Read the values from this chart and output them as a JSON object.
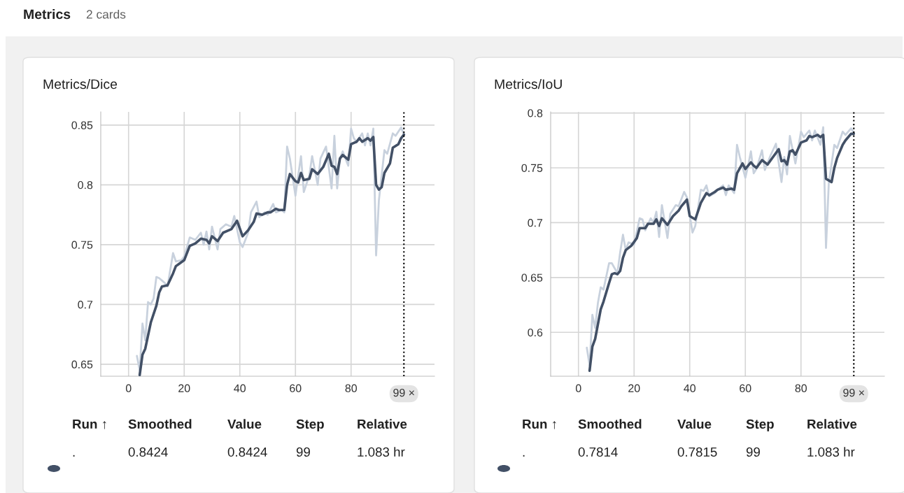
{
  "chart_data": [
    {
      "type": "line",
      "title": "Metrics/Dice",
      "xlim": [
        -10,
        110
      ],
      "xticks": [
        0,
        20,
        40,
        60,
        80
      ],
      "ylim": [
        0.64,
        0.861
      ],
      "yticks": [
        0.65,
        0.7,
        0.75,
        0.8,
        0.85
      ],
      "grid": true,
      "line_style": "solid",
      "marker": "none",
      "series": [
        {
          "color": "#c8d1dd",
          "x": [
            3,
            4,
            5,
            6,
            7,
            8,
            9,
            10,
            11,
            12,
            13,
            14,
            16,
            17,
            19,
            20,
            22,
            24,
            26,
            27,
            28,
            29,
            30,
            32,
            33,
            35,
            37,
            38,
            40,
            41,
            43,
            44,
            46,
            47,
            49,
            50,
            52,
            53,
            55,
            56,
            57,
            58,
            60,
            61,
            62,
            63,
            65,
            66,
            68,
            69,
            71,
            73,
            74,
            75,
            76,
            77,
            79,
            80,
            81,
            82,
            84,
            85,
            86,
            87,
            88,
            89,
            90,
            92,
            93,
            95,
            96,
            98,
            99
          ],
          "values": [
            0.657,
            0.645,
            0.684,
            0.67,
            0.702,
            0.7,
            0.705,
            0.723,
            0.722,
            0.72,
            0.718,
            0.715,
            0.743,
            0.736,
            0.737,
            0.74,
            0.756,
            0.754,
            0.76,
            0.75,
            0.761,
            0.746,
            0.765,
            0.746,
            0.763,
            0.767,
            0.765,
            0.774,
            0.752,
            0.748,
            0.76,
            0.777,
            0.786,
            0.773,
            0.777,
            0.775,
            0.784,
            0.777,
            0.779,
            0.777,
            0.832,
            0.822,
            0.791,
            0.808,
            0.824,
            0.794,
            0.808,
            0.824,
            0.8,
            0.822,
            0.832,
            0.797,
            0.841,
            0.797,
            0.822,
            0.828,
            0.816,
            0.847,
            0.839,
            0.836,
            0.843,
            0.833,
            0.843,
            0.833,
            0.847,
            0.741,
            0.787,
            0.829,
            0.826,
            0.843,
            0.841,
            0.848,
            0.842
          ]
        },
        {
          "color": "#425066",
          "x": [
            4,
            5,
            6,
            8,
            10,
            11,
            12,
            14,
            16,
            17,
            20,
            22,
            24,
            26,
            28,
            29,
            30,
            32,
            34,
            36,
            37,
            39,
            41,
            43,
            45,
            46,
            48,
            50,
            51,
            53,
            54,
            56,
            57,
            58,
            60,
            61,
            62,
            63,
            65,
            66,
            68,
            70,
            72,
            73,
            74,
            75,
            76,
            77,
            79,
            80,
            82,
            83,
            84,
            86,
            87,
            88,
            89,
            90,
            91,
            92,
            94,
            95,
            97,
            98,
            99
          ],
          "values": [
            0.641,
            0.658,
            0.663,
            0.685,
            0.699,
            0.71,
            0.715,
            0.716,
            0.726,
            0.732,
            0.737,
            0.749,
            0.751,
            0.755,
            0.754,
            0.751,
            0.757,
            0.753,
            0.76,
            0.762,
            0.763,
            0.77,
            0.757,
            0.762,
            0.769,
            0.776,
            0.775,
            0.777,
            0.777,
            0.78,
            0.779,
            0.779,
            0.8,
            0.809,
            0.803,
            0.802,
            0.81,
            0.804,
            0.805,
            0.813,
            0.809,
            0.815,
            0.826,
            0.816,
            0.815,
            0.809,
            0.822,
            0.825,
            0.821,
            0.834,
            0.836,
            0.839,
            0.836,
            0.839,
            0.837,
            0.84,
            0.8,
            0.796,
            0.798,
            0.81,
            0.818,
            0.831,
            0.834,
            0.839,
            0.842
          ]
        }
      ],
      "ref_lines": [
        {
          "axis": "x",
          "value": 99,
          "label": "99 ×",
          "color": "#000000",
          "line_style": "dotted"
        }
      ],
      "annotations": [
        "Metrics",
        "2 cards",
        "Run ↑",
        "Smoothed",
        "Value",
        "Step",
        "Relative",
        ".",
        "0.8424",
        "0.8424",
        "99",
        "1.083 hr"
      ]
    },
    {
      "type": "line",
      "title": "Metrics/IoU",
      "xlim": [
        -10,
        110
      ],
      "xticks": [
        0,
        20,
        40,
        60,
        80
      ],
      "ylim": [
        0.56,
        0.801
      ],
      "yticks": [
        0.6,
        0.65,
        0.7,
        0.75,
        0.8
      ],
      "grid": true,
      "line_style": "solid",
      "marker": "none",
      "series": [
        {
          "color": "#c8d1dd",
          "x": [
            3,
            4,
            5,
            6,
            7,
            8,
            9,
            11,
            12,
            14,
            15,
            16,
            17,
            18,
            20,
            22,
            23,
            24,
            26,
            27,
            28,
            29,
            30,
            32,
            33,
            35,
            36,
            38,
            39,
            41,
            42,
            44,
            45,
            46,
            47,
            49,
            50,
            52,
            53,
            54,
            56,
            57,
            58,
            60,
            61,
            62,
            63,
            64,
            66,
            67,
            69,
            71,
            73,
            74,
            75,
            76,
            78,
            80,
            81,
            83,
            84,
            85,
            87,
            88,
            89,
            90,
            92,
            93,
            95,
            96,
            98,
            99
          ],
          "values": [
            0.586,
            0.57,
            0.616,
            0.604,
            0.627,
            0.641,
            0.639,
            0.663,
            0.663,
            0.654,
            0.673,
            0.689,
            0.675,
            0.682,
            0.68,
            0.704,
            0.703,
            0.693,
            0.704,
            0.7,
            0.71,
            0.687,
            0.716,
            0.686,
            0.708,
            0.716,
            0.715,
            0.728,
            0.723,
            0.691,
            0.697,
            0.73,
            0.729,
            0.734,
            0.724,
            0.727,
            0.73,
            0.734,
            0.725,
            0.734,
            0.727,
            0.771,
            0.76,
            0.741,
            0.752,
            0.765,
            0.745,
            0.749,
            0.766,
            0.748,
            0.761,
            0.772,
            0.737,
            0.76,
            0.744,
            0.779,
            0.754,
            0.783,
            0.778,
            0.784,
            0.775,
            0.784,
            0.771,
            0.787,
            0.677,
            0.736,
            0.771,
            0.768,
            0.783,
            0.78,
            0.786,
            0.782
          ]
        },
        {
          "color": "#425066",
          "x": [
            4,
            5,
            6,
            8,
            9,
            11,
            12,
            13,
            14,
            15,
            16,
            17,
            19,
            21,
            22,
            24,
            25,
            27,
            28,
            29,
            30,
            32,
            34,
            36,
            37,
            39,
            40,
            42,
            44,
            46,
            47,
            49,
            50,
            52,
            53,
            55,
            56,
            57,
            59,
            60,
            62,
            63,
            64,
            66,
            67,
            68,
            70,
            72,
            73,
            74,
            75,
            76,
            77,
            78,
            80,
            82,
            83,
            84,
            86,
            87,
            88,
            89,
            91,
            92,
            93,
            95,
            96,
            98,
            99
          ],
          "values": [
            0.565,
            0.587,
            0.594,
            0.621,
            0.628,
            0.645,
            0.653,
            0.654,
            0.653,
            0.656,
            0.668,
            0.675,
            0.679,
            0.686,
            0.695,
            0.695,
            0.699,
            0.699,
            0.703,
            0.697,
            0.704,
            0.698,
            0.706,
            0.711,
            0.715,
            0.721,
            0.706,
            0.703,
            0.718,
            0.727,
            0.725,
            0.728,
            0.73,
            0.732,
            0.73,
            0.731,
            0.73,
            0.745,
            0.754,
            0.749,
            0.755,
            0.752,
            0.75,
            0.757,
            0.755,
            0.753,
            0.76,
            0.767,
            0.756,
            0.757,
            0.753,
            0.765,
            0.766,
            0.762,
            0.773,
            0.775,
            0.779,
            0.778,
            0.78,
            0.778,
            0.78,
            0.74,
            0.737,
            0.75,
            0.759,
            0.771,
            0.775,
            0.781,
            0.781
          ]
        }
      ],
      "ref_lines": [
        {
          "axis": "x",
          "value": 99,
          "label": "99 ×",
          "color": "#000000",
          "line_style": "dotted"
        }
      ],
      "annotations": [
        "Run ↑",
        "Smoothed",
        "Value",
        "Step",
        "Relative",
        ".",
        "0.7814",
        "0.7815",
        "99",
        "1.083 hr"
      ]
    }
  ]
}
